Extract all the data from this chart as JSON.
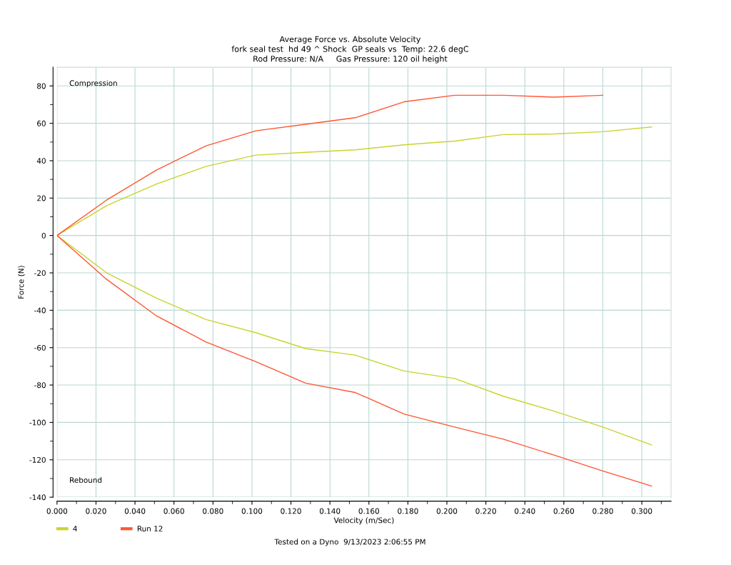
{
  "chart_data": {
    "type": "line",
    "title": "Average Force vs. Absolute Velocity",
    "subtitle": "fork seal test  hd 49 ^ Shock  GP seals vs  Temp: 22.6 degC\nRod Pressure: N/A     Gas Pressure: 120 oil height",
    "xlabel": "Velocity (m/Sec)",
    "ylabel": "Force (N)",
    "xlim": [
      0,
      0.315
    ],
    "ylim": [
      -140,
      90
    ],
    "xticks": [
      {
        "value": 0,
        "label": "0.000"
      },
      {
        "value": 0.01,
        "label": null
      },
      {
        "value": 0.02,
        "label": "0.020"
      },
      {
        "value": 0.03,
        "label": null
      },
      {
        "value": 0.04,
        "label": "0.040"
      },
      {
        "value": 0.05,
        "label": null
      },
      {
        "value": 0.06,
        "label": "0.060"
      },
      {
        "value": 0.07,
        "label": null
      },
      {
        "value": 0.08,
        "label": "0.080"
      },
      {
        "value": 0.09,
        "label": null
      },
      {
        "value": 0.1,
        "label": "0.100"
      },
      {
        "value": 0.11,
        "label": null
      },
      {
        "value": 0.12,
        "label": "0.120"
      },
      {
        "value": 0.13,
        "label": null
      },
      {
        "value": 0.14,
        "label": "0.140"
      },
      {
        "value": 0.15,
        "label": null
      },
      {
        "value": 0.16,
        "label": "0.160"
      },
      {
        "value": 0.17,
        "label": null
      },
      {
        "value": 0.18,
        "label": "0.180"
      },
      {
        "value": 0.19,
        "label": null
      },
      {
        "value": 0.2,
        "label": "0.200"
      },
      {
        "value": 0.21,
        "label": null
      },
      {
        "value": 0.22,
        "label": "0.220"
      },
      {
        "value": 0.23,
        "label": null
      },
      {
        "value": 0.24,
        "label": "0.240"
      },
      {
        "value": 0.25,
        "label": null
      },
      {
        "value": 0.26,
        "label": "0.260"
      },
      {
        "value": 0.27,
        "label": null
      },
      {
        "value": 0.28,
        "label": "0.280"
      },
      {
        "value": 0.29,
        "label": null
      },
      {
        "value": 0.3,
        "label": "0.300"
      },
      {
        "value": 0.31,
        "label": null
      }
    ],
    "yticks": [
      -140,
      {
        "value": -130,
        "label": null
      },
      -120,
      {
        "value": -110,
        "label": null
      },
      -100,
      {
        "value": -90,
        "label": null
      },
      -80,
      {
        "value": -70,
        "label": null
      },
      -60,
      {
        "value": -50,
        "label": null
      },
      -40,
      {
        "value": -30,
        "label": null
      },
      -20,
      {
        "value": -10,
        "label": null
      },
      0,
      {
        "value": 10,
        "label": null
      },
      20,
      {
        "value": 30,
        "label": null
      },
      40,
      {
        "value": 50,
        "label": null
      },
      60,
      {
        "value": 70,
        "label": null
      },
      80
    ],
    "grid": true,
    "legend": "bottom left",
    "marker": "none",
    "line_style": "solid",
    "series": [
      {
        "name": "4",
        "color": "#c8d42c",
        "x": [
          0.305,
          0.28,
          0.255,
          0.229,
          0.204,
          0.178,
          0.153,
          0.1275,
          0.102,
          0.0765,
          0.051,
          0.0255,
          0,
          0.0255,
          0.051,
          0.0765,
          0.102,
          0.1275,
          0.153,
          0.178,
          0.204,
          0.229,
          0.255,
          0.28,
          0.305
        ],
        "values": [
          58,
          55.5,
          54.3,
          54,
          50.5,
          48.5,
          45.8,
          44.5,
          43,
          37,
          27.5,
          16,
          0,
          -20,
          -33.5,
          -45,
          -52,
          -60.5,
          -64,
          -72.5,
          -76.5,
          -86,
          -94,
          -102.5,
          -112
        ]
      },
      {
        "name": "Run 12",
        "color": "#ff5533",
        "x": [
          0.28,
          0.255,
          0.229,
          0.204,
          0.178,
          0.153,
          0.1275,
          0.102,
          0.0765,
          0.051,
          0.0255,
          0,
          0.0255,
          0.051,
          0.0765,
          0.102,
          0.1275,
          0.153,
          0.178,
          0.204,
          0.229,
          0.255,
          0.28,
          0.305
        ],
        "values": [
          75,
          74,
          75,
          75,
          71.5,
          63,
          59.5,
          56,
          48,
          35,
          19,
          0,
          -23.5,
          -43,
          -57,
          -67.5,
          -79,
          -84,
          -95.5,
          -102.5,
          -109,
          -117.5,
          -126,
          -134
        ]
      }
    ],
    "annotations": [
      "Compression",
      "Rebound",
      "Tested on a Dyno  9/13/2023 2:06:55 PM"
    ]
  }
}
